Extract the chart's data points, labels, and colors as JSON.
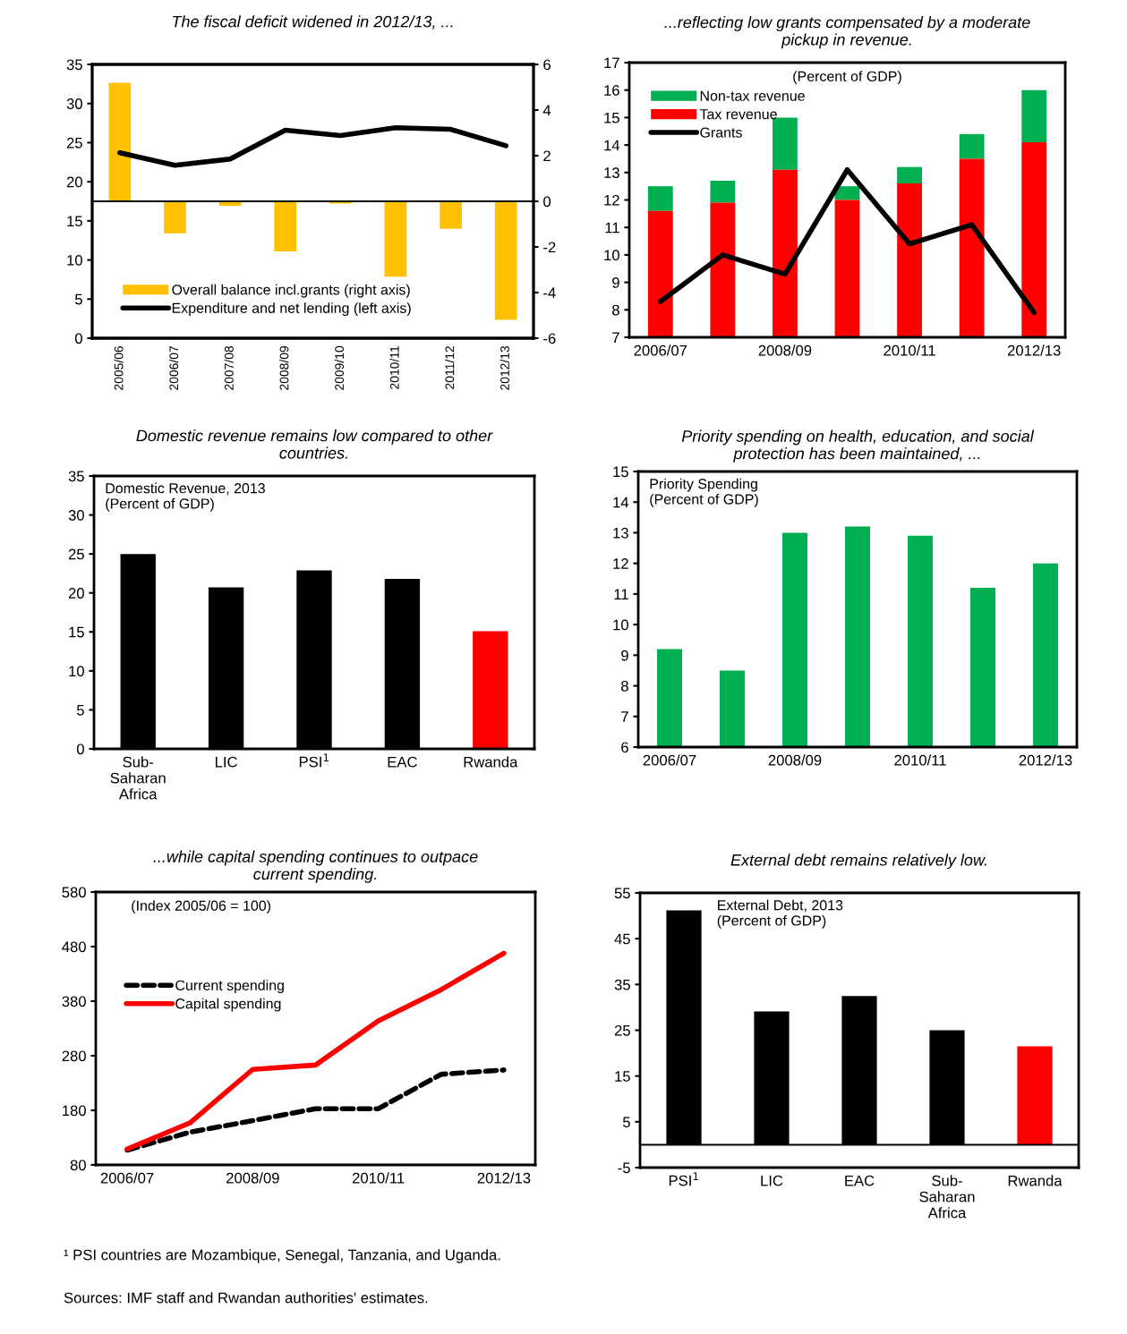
{
  "chart_data": [
    {
      "type": "bar",
      "title": "The fiscal deficit widened in 2012/13, ...",
      "categories": [
        "2005/06",
        "2006/07",
        "2007/08",
        "2008/09",
        "2009/10",
        "2010/11",
        "2011/12",
        "2012/13"
      ],
      "series": [
        {
          "name": "Overall balance incl.grants (right axis)",
          "type": "bar",
          "axis": "y2",
          "color": "#ffc000",
          "values": [
            5.2,
            -1.4,
            -0.2,
            -2.2,
            -0.1,
            -3.3,
            -1.2,
            -5.2
          ]
        },
        {
          "name": "Expenditure and net lending (left axis)",
          "type": "line",
          "color": "#000000",
          "values": [
            23.7,
            22.1,
            22.9,
            26.6,
            25.9,
            26.9,
            26.7,
            24.6
          ]
        }
      ],
      "ylim": [
        0,
        35
      ],
      "yticks": [
        0,
        5,
        10,
        15,
        20,
        25,
        30,
        35
      ],
      "y2lim": [
        -6,
        6
      ],
      "y2ticks": [
        -6,
        -4,
        -2,
        0,
        2,
        4,
        6
      ],
      "ref_lines": [
        {
          "axis": "y2",
          "value": 0,
          "color": "#000000"
        }
      ],
      "legend": "bottom left",
      "grid": false
    },
    {
      "type": "bar",
      "title": "...reflecting low grants compensated by a moderate\npickup in revenue.",
      "categories": [
        "2006/07",
        null,
        "2008/09",
        null,
        "2010/11",
        null,
        "2012/13"
      ],
      "series": [
        {
          "name": "Non-tax revenue",
          "type": "bar",
          "color": "#00b050",
          "base": [
            11.6,
            11.9,
            13.1,
            12.0,
            12.6,
            13.5,
            14.1
          ],
          "values": [
            0.9,
            0.8,
            1.9,
            0.5,
            0.6,
            0.9,
            1.9
          ]
        },
        {
          "name": "Tax revenue",
          "type": "bar",
          "color": "#ff0000",
          "values": [
            11.6,
            11.9,
            13.1,
            12.0,
            12.6,
            13.5,
            14.1
          ]
        },
        {
          "name": "Grants",
          "type": "line",
          "color": "#000000",
          "values": [
            8.3,
            10.0,
            9.3,
            13.1,
            10.4,
            11.1,
            7.9
          ]
        }
      ],
      "ylim": [
        7,
        17
      ],
      "yticks": [
        7,
        8,
        9,
        10,
        11,
        12,
        13,
        14,
        15,
        16,
        17
      ],
      "annotations": [
        "(Percent of GDP)"
      ],
      "legend": "top left",
      "grid": false
    },
    {
      "type": "bar",
      "title": "Domestic revenue remains low compared to other\ncountries.",
      "categories": [
        "Sub-\nSaharan\nAfrica",
        "LIC",
        "PSI$^{1}$",
        "EAC",
        "Rwanda"
      ],
      "values": [
        25.0,
        20.7,
        22.9,
        21.8,
        15.1
      ],
      "colors": [
        "#000000",
        "#000000",
        "#000000",
        "#000000",
        "#ff0000"
      ],
      "ylim": [
        0,
        35
      ],
      "yticks": [
        0,
        5,
        10,
        15,
        20,
        25,
        30,
        35
      ],
      "annotations": [
        "Domestic Revenue, 2013\n(Percent of GDP)"
      ],
      "grid": false
    },
    {
      "type": "bar",
      "title": "Priority spending on health, education, and social\nprotection has been maintained, ...",
      "categories": [
        "2006/07",
        null,
        "2008/09",
        null,
        "2010/11",
        null,
        "2012/13"
      ],
      "values": [
        9.2,
        8.5,
        13.0,
        13.2,
        12.9,
        11.2,
        12.0
      ],
      "colors": [
        "#00b050",
        "#00b050",
        "#00b050",
        "#00b050",
        "#00b050",
        "#00b050",
        "#00b050"
      ],
      "ylim": [
        6,
        15
      ],
      "yticks": [
        6,
        7,
        8,
        9,
        10,
        11,
        12,
        13,
        14,
        15
      ],
      "annotations": [
        "Priority Spending\n(Percent of GDP)"
      ],
      "grid": false
    },
    {
      "type": "line",
      "title": "...while capital spending continues to outpace\ncurrent spending.",
      "categories": [
        "2006/07",
        null,
        "2008/09",
        null,
        "2010/11",
        null,
        "2012/13"
      ],
      "series": [
        {
          "name": "Current spending",
          "color": "#000000",
          "line_style": "dashed",
          "values": [
            107,
            140,
            161,
            183,
            183,
            246,
            254
          ]
        },
        {
          "name": "Capital spending",
          "color": "#ff0000",
          "line_style": "solid",
          "values": [
            109,
            157,
            255,
            263,
            344,
            401,
            468
          ]
        }
      ],
      "ylim": [
        80,
        580
      ],
      "yticks": [
        80,
        180,
        280,
        380,
        480,
        580
      ],
      "annotations": [
        "(Index 2005/06 = 100)"
      ],
      "legend": "left",
      "grid": false
    },
    {
      "type": "bar",
      "title": "External debt remains relatively low.",
      "categories": [
        "PSI$^{1}$",
        "LIC",
        "EAC",
        "Sub-\nSaharan\nAfrica",
        "Rwanda"
      ],
      "values": [
        51.2,
        29.1,
        32.5,
        25.0,
        21.5
      ],
      "colors": [
        "#000000",
        "#000000",
        "#000000",
        "#000000",
        "#ff0000"
      ],
      "ylim": [
        -5,
        55
      ],
      "yticks": [
        -5,
        5,
        15,
        25,
        35,
        45,
        55
      ],
      "ref_lines": [
        {
          "axis": "y",
          "value": 0,
          "color": "#000000"
        }
      ],
      "annotations": [
        "External Debt, 2013\n(Percent of GDP)",
        "¹ PSI countries are Mozambique, Senegal, Tanzania, and Uganda.",
        "Sources: IMF staff and Rwandan authorities' estimates."
      ],
      "grid": false
    }
  ]
}
